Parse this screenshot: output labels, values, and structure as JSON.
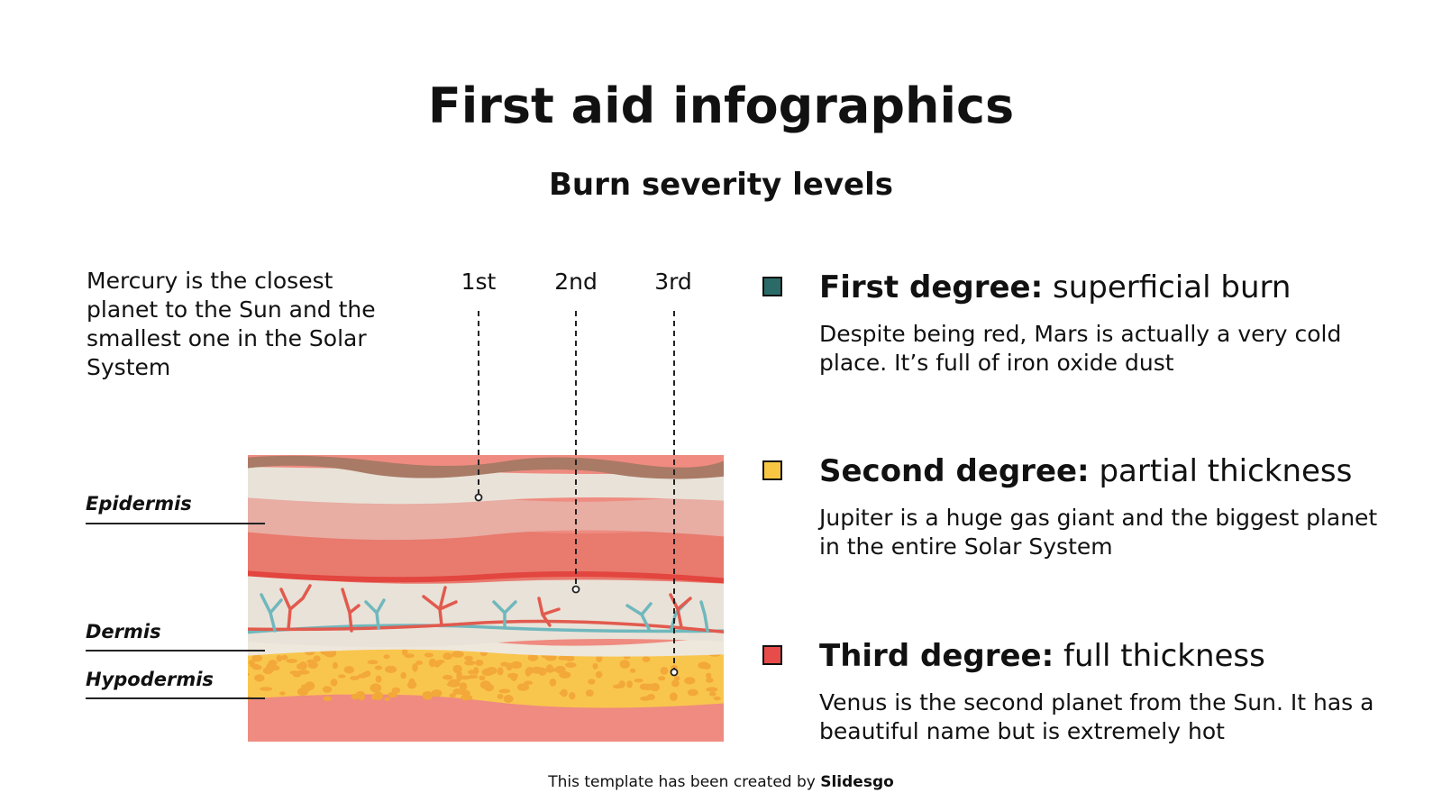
{
  "title": "First aid infographics",
  "subtitle": "Burn severity levels",
  "intro_text": "Mercury is the closest planet to the Sun and the smallest one in the Solar System",
  "degree_columns": [
    "1st",
    "2nd",
    "3rd"
  ],
  "layers": {
    "epidermis": "Epidermis",
    "dermis": "Dermis",
    "hypodermis": "Hypodermis"
  },
  "legend": [
    {
      "head_bold": "First degree:",
      "head_rest": " superficial burn",
      "desc": "Despite being red, Mars is actually a very cold place. It’s full of iron oxide dust",
      "color": "#2b6b67"
    },
    {
      "head_bold": "Second degree:",
      "head_rest": " partial thickness",
      "desc": "Jupiter is a huge gas giant and the biggest planet in the entire Solar System",
      "color": "#f7c744"
    },
    {
      "head_bold": "Third degree:",
      "head_rest": " full thickness",
      "desc": "Venus is the second planet from the Sun. It has a beautiful name but is extremely hot",
      "color": "#e84c4a"
    }
  ],
  "footer": {
    "prefix": "This template has been created by ",
    "brand": "Slidesgo"
  },
  "colors": {
    "skin_top": "#a97a66",
    "skin_pale": "#e9e2d8",
    "skin_light_pink": "#e8ada3",
    "skin_red": "#e87a6e",
    "skin_line_red": "#e3453f",
    "vessel_red": "#e25a4e",
    "vessel_blue": "#6fb8bd",
    "fat_yellow": "#f9c64d",
    "fat_orange": "#f3a83a",
    "bottom_pink": "#ef8b80"
  }
}
